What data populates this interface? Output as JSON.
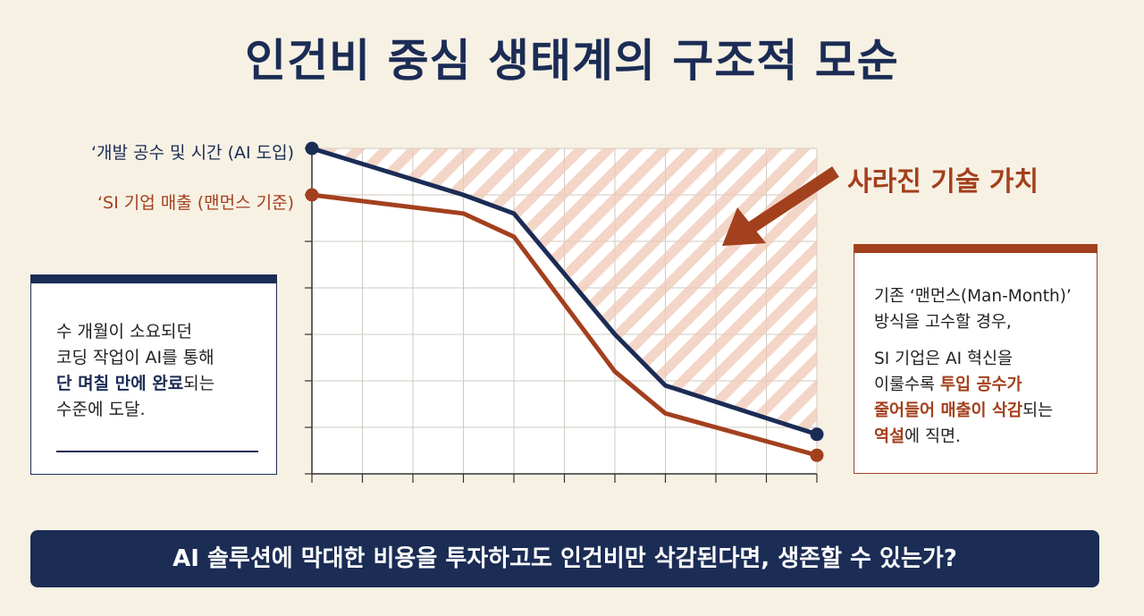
{
  "title": "인건비 중심 생태계의 구조적 모순",
  "annotation_lost_value": "사라진 기술 가치",
  "left_box": {
    "line1": "수 개월이 소요되던",
    "line2": "코딩 작업이 AI를 통해",
    "line3_bold": "단 며칠 만에 완료",
    "line3_rest": "되는",
    "line4": "수준에 도달."
  },
  "right_box": {
    "line1": "기존 ‘맨먼스(Man-Month)’",
    "line2": "방식을 고수할 경우,",
    "line3": "SI 기업은 AI 혁신을",
    "line4_pre": "이룰수록 ",
    "line4_bold": "투입 공수가",
    "line5_bold": "줄어들어 매출이 삭감",
    "line5_rest": "되는",
    "line6_bold": "역설",
    "line6_rest": "에 직면."
  },
  "banner": "AI 솔루션에 막대한 비용을 투자하고도 인건비만 삭감된다면, 생존할 수 있는가?",
  "colors": {
    "navy": "#1b2c55",
    "rust": "#a3401d",
    "background": "#f7f1e4",
    "hatch": "#e9b9a2"
  },
  "chart_data": {
    "type": "line",
    "title": "",
    "xlabel": "",
    "ylabel": "",
    "x": [
      0,
      1,
      2,
      3,
      4,
      5,
      6,
      7,
      8,
      9,
      10
    ],
    "ylim": [
      0,
      7
    ],
    "grid": true,
    "series": [
      {
        "name": "‘개발 공수 및 시간 (AI 도입)",
        "color": "#1b2c55",
        "points": [
          [
            0,
            7.0
          ],
          [
            3,
            6.0
          ],
          [
            4,
            5.6
          ],
          [
            6,
            3.0
          ],
          [
            7,
            1.9
          ],
          [
            10,
            0.85
          ]
        ]
      },
      {
        "name": "‘SI 기업 매출 (맨먼스 기준)",
        "color": "#a3401d",
        "points": [
          [
            0,
            6.0
          ],
          [
            3,
            5.6
          ],
          [
            4,
            5.1
          ],
          [
            6,
            2.2
          ],
          [
            7,
            1.3
          ],
          [
            10,
            0.4
          ]
        ]
      }
    ]
  }
}
